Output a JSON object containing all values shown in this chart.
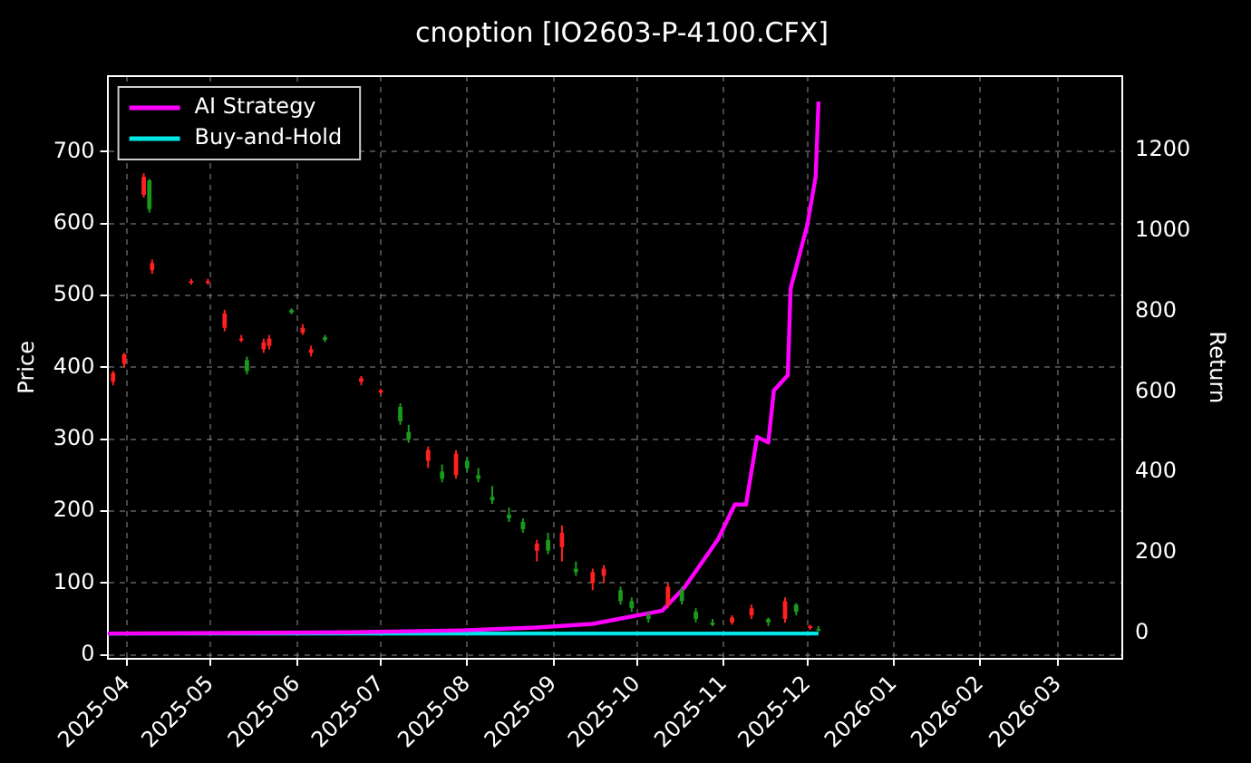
{
  "chart_data": {
    "type": "candlestick",
    "title": "cnoption [IO2603-P-4100.CFX]",
    "ylabel": "Price",
    "y2label": "Return",
    "x": [
      "2025-03-27",
      "2025-03-31",
      "2025-04-07",
      "2025-04-09",
      "2025-04-10",
      "2025-04-24",
      "2025-04-30",
      "2025-05-06",
      "2025-05-12",
      "2025-05-14",
      "2025-05-20",
      "2025-05-22",
      "2025-05-30",
      "2025-06-03",
      "2025-06-06",
      "2025-06-11",
      "2025-06-24",
      "2025-07-01",
      "2025-07-08",
      "2025-07-11",
      "2025-07-18",
      "2025-07-23",
      "2025-07-28",
      "2025-08-01",
      "2025-08-05",
      "2025-08-10",
      "2025-08-16",
      "2025-08-21",
      "2025-08-26",
      "2025-08-30",
      "2025-09-04",
      "2025-09-09",
      "2025-09-15",
      "2025-09-19",
      "2025-09-25",
      "2025-09-29",
      "2025-10-05",
      "2025-10-12",
      "2025-10-17",
      "2025-10-22",
      "2025-10-28",
      "2025-11-04",
      "2025-11-11",
      "2025-11-17",
      "2025-11-23",
      "2025-11-27",
      "2025-12-02",
      "2025-12-05"
    ],
    "ohlc": [
      [
        380,
        395,
        375,
        392
      ],
      [
        405,
        420,
        400,
        418
      ],
      [
        640,
        670,
        636,
        665
      ],
      [
        660,
        662,
        615,
        620
      ],
      [
        535,
        550,
        530,
        545
      ],
      [
        518,
        523,
        515,
        520
      ],
      [
        519,
        523,
        515,
        520
      ],
      [
        455,
        480,
        450,
        475
      ],
      [
        438,
        445,
        435,
        440
      ],
      [
        410,
        415,
        390,
        395
      ],
      [
        425,
        440,
        420,
        435
      ],
      [
        430,
        445,
        425,
        440
      ],
      [
        480,
        482,
        474,
        476
      ],
      [
        448,
        460,
        445,
        455
      ],
      [
        420,
        430,
        415,
        425
      ],
      [
        442,
        445,
        435,
        438
      ],
      [
        380,
        388,
        375,
        385
      ],
      [
        365,
        370,
        362,
        368
      ],
      [
        345,
        350,
        320,
        325
      ],
      [
        310,
        320,
        295,
        300
      ],
      [
        270,
        290,
        260,
        285
      ],
      [
        255,
        265,
        240,
        245
      ],
      [
        250,
        285,
        245,
        280
      ],
      [
        270,
        275,
        255,
        260
      ],
      [
        250,
        260,
        240,
        245
      ],
      [
        220,
        235,
        210,
        215
      ],
      [
        195,
        205,
        185,
        190
      ],
      [
        185,
        190,
        170,
        175
      ],
      [
        145,
        160,
        130,
        155
      ],
      [
        160,
        170,
        140,
        145
      ],
      [
        150,
        180,
        130,
        170
      ],
      [
        120,
        130,
        110,
        115
      ],
      [
        100,
        120,
        90,
        115
      ],
      [
        110,
        125,
        100,
        120
      ],
      [
        90,
        95,
        70,
        75
      ],
      [
        75,
        80,
        60,
        65
      ],
      [
        55,
        60,
        45,
        50
      ],
      [
        70,
        100,
        65,
        95
      ],
      [
        90,
        95,
        70,
        75
      ],
      [
        60,
        65,
        45,
        50
      ],
      [
        45,
        50,
        40,
        42
      ],
      [
        45,
        55,
        42,
        52
      ],
      [
        55,
        70,
        50,
        65
      ],
      [
        50,
        52,
        40,
        45
      ],
      [
        50,
        80,
        45,
        75
      ],
      [
        70,
        72,
        55,
        60
      ],
      [
        38,
        42,
        35,
        40
      ],
      [
        36,
        40,
        33,
        35
      ]
    ],
    "colors": [
      "#ff2020",
      "#ff2020",
      "#ff2020",
      "#1a9a1a",
      "#ff2020",
      "#ff2020",
      "#ff2020",
      "#ff2020",
      "#ff2020",
      "#1a9a1a",
      "#ff2020",
      "#ff2020",
      "#1a9a1a",
      "#ff2020",
      "#ff2020",
      "#1a9a1a",
      "#ff2020",
      "#ff2020",
      "#1a9a1a",
      "#1a9a1a",
      "#ff2020",
      "#1a9a1a",
      "#ff2020",
      "#1a9a1a",
      "#1a9a1a",
      "#1a9a1a",
      "#1a9a1a",
      "#1a9a1a",
      "#ff2020",
      "#1a9a1a",
      "#ff2020",
      "#1a9a1a",
      "#ff2020",
      "#ff2020",
      "#1a9a1a",
      "#1a9a1a",
      "#1a9a1a",
      "#ff2020",
      "#1a9a1a",
      "#1a9a1a",
      "#1a9a1a",
      "#ff2020",
      "#ff2020",
      "#1a9a1a",
      "#ff2020",
      "#1a9a1a",
      "#ff2020",
      "#1a9a1a"
    ],
    "series": [
      {
        "name": "AI Strategy",
        "type": "line",
        "axis": "y2",
        "color": "#ff00ff",
        "x": [
          "2025-03-25",
          "2025-06-20",
          "2025-07-30",
          "2025-08-26",
          "2025-09-15",
          "2025-10-10",
          "2025-10-18",
          "2025-10-30",
          "2025-11-05",
          "2025-11-09",
          "2025-11-13",
          "2025-11-17",
          "2025-11-19",
          "2025-11-24",
          "2025-11-25",
          "2025-12-01",
          "2025-12-04",
          "2025-12-05"
        ],
        "values": [
          0,
          3,
          8,
          15,
          24,
          57,
          115,
          234,
          320,
          320,
          488,
          474,
          603,
          641,
          856,
          1014,
          1134,
          1320
        ]
      },
      {
        "name": "Buy-and-Hold",
        "type": "line",
        "axis": "y2",
        "color": "#00e5e5",
        "x": [
          "2025-03-25",
          "2025-12-05"
        ],
        "values": [
          0,
          0
        ]
      }
    ],
    "xlim": [
      "2025-03-25",
      "2026-03-24"
    ],
    "xticks": [
      {
        "value": "2025-04-01",
        "label": "2025-04"
      },
      {
        "value": "2025-05-01",
        "label": "2025-05"
      },
      {
        "value": "2025-06-01",
        "label": "2025-06"
      },
      {
        "value": "2025-07-01",
        "label": "2025-07"
      },
      {
        "value": "2025-08-01",
        "label": "2025-08"
      },
      {
        "value": "2025-09-01",
        "label": "2025-09"
      },
      {
        "value": "2025-10-01",
        "label": "2025-10"
      },
      {
        "value": "2025-11-01",
        "label": "2025-11"
      },
      {
        "value": "2025-12-01",
        "label": "2025-12"
      },
      {
        "value": "2026-01-01",
        "label": "2026-01"
      },
      {
        "value": "2026-02-01",
        "label": "2026-02"
      },
      {
        "value": "2026-03-01",
        "label": "2026-03"
      }
    ],
    "ylim": [
      -5,
      805
    ],
    "yticks": [
      0,
      100,
      200,
      300,
      400,
      500,
      600,
      700
    ],
    "y2lim": [
      -62,
      1383
    ],
    "y2ticks": [
      0,
      200,
      400,
      600,
      800,
      1000,
      1200
    ],
    "grid": true,
    "legend": "top left"
  }
}
